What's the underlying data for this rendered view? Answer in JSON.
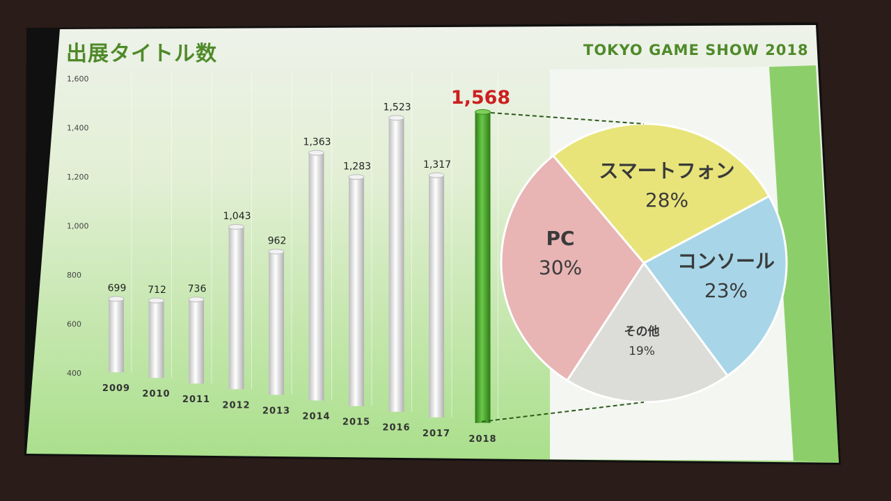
{
  "slide": {
    "title": "出展タイトル数",
    "brand": "TOKYO GAME SHOW 2018"
  },
  "colors": {
    "accent_green": "#4f8a2a",
    "highlight_red": "#cc1f1f",
    "bar": "#e8e8e8",
    "bar_2018": "#4aa82a"
  },
  "chart_data": [
    {
      "type": "bar",
      "title": "出展タイトル数",
      "categories": [
        "2009",
        "2010",
        "2011",
        "2012",
        "2013",
        "2014",
        "2015",
        "2016",
        "2017",
        "2018"
      ],
      "values": [
        699,
        712,
        736,
        1043,
        962,
        1363,
        1283,
        1523,
        1317,
        1568
      ],
      "data_labels": [
        "699",
        "712",
        "736",
        "1,043",
        "962",
        "1,363",
        "1,283",
        "1,523",
        "1,317",
        "1,568"
      ],
      "ylim": [
        400,
        1600
      ],
      "yticks": [
        "400",
        "600",
        "800",
        "1,000",
        "1,200",
        "1,400",
        "1,600"
      ],
      "grid": true,
      "highlight": "2018"
    },
    {
      "type": "pie",
      "slices": [
        {
          "label": "スマートフォン",
          "pct_label": "28%",
          "value": 28,
          "color": "#e8e47a"
        },
        {
          "label": "コンソール",
          "pct_label": "23%",
          "value": 23,
          "color": "#a8d6e8"
        },
        {
          "label": "その他",
          "pct_label": "19%",
          "value": 19,
          "color": "#dcdcd8"
        },
        {
          "label": "PC",
          "pct_label": "30%",
          "value": 30,
          "color": "#e8b4b4"
        }
      ]
    }
  ]
}
